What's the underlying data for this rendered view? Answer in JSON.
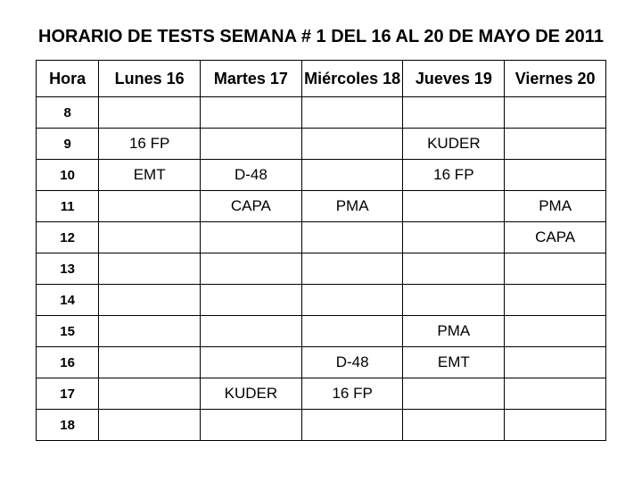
{
  "title": "HORARIO DE TESTS  SEMANA # 1 DEL 16 AL 20 DE MAYO DE 2011",
  "table": {
    "columns": [
      "Hora",
      "Lunes 16",
      "Martes 17",
      "Miércoles 18",
      "Jueves 19",
      "Viernes 20"
    ],
    "hours": [
      "8",
      "9",
      "10",
      "11",
      "12",
      "13",
      "14",
      "15",
      "16",
      "17",
      "18"
    ],
    "rows": [
      [
        "",
        "",
        "",
        "",
        ""
      ],
      [
        "16 FP",
        "",
        "",
        "KUDER",
        ""
      ],
      [
        "EMT",
        "D-48",
        "",
        "16 FP",
        ""
      ],
      [
        "",
        "CAPA",
        "PMA",
        "",
        "PMA"
      ],
      [
        "",
        "",
        "",
        "",
        "CAPA"
      ],
      [
        "",
        "",
        "",
        "",
        ""
      ],
      [
        "",
        "",
        "",
        "",
        ""
      ],
      [
        "",
        "",
        "",
        "PMA",
        ""
      ],
      [
        "",
        "",
        "D-48",
        "EMT",
        ""
      ],
      [
        "",
        "KUDER",
        "16 FP",
        "",
        ""
      ],
      [
        "",
        "",
        "",
        "",
        ""
      ]
    ],
    "column_widths_pct": [
      11,
      17.8,
      17.8,
      17.8,
      17.8,
      17.8
    ],
    "header_fontsize_pt": 18,
    "hour_fontsize_pt": 15,
    "cell_fontsize_pt": 17,
    "border_color": "#000000",
    "background_color": "#ffffff",
    "text_color": "#000000"
  }
}
